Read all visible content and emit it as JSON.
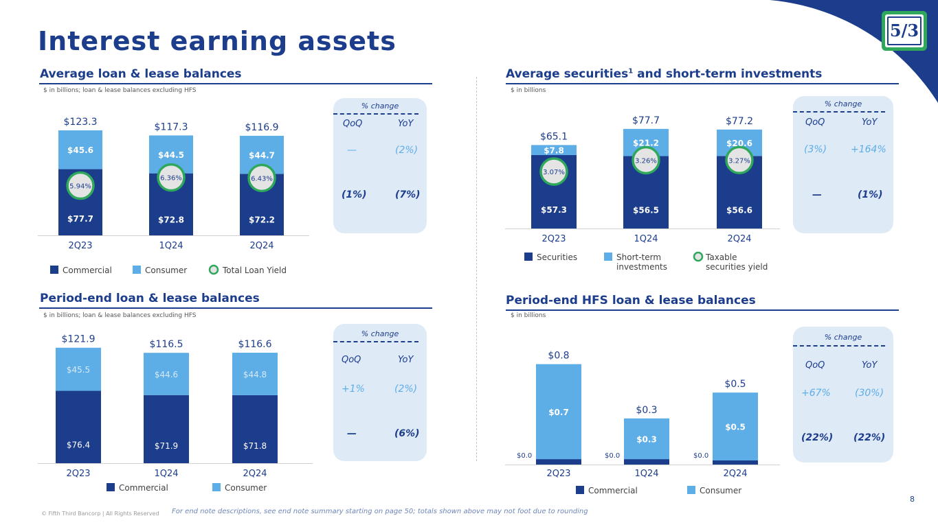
{
  "page": {
    "title": "Interest earning assets",
    "page_number": "8"
  },
  "footer": {
    "note": "For end note descriptions, see end note summary starting on page 50; totals shown above may not foot due to rounding",
    "copyright": "© Fifth Third Bancorp | All Rights Reserved"
  },
  "logo": {
    "text": "5/3"
  },
  "colors": {
    "navy": "#1c3c8c",
    "light_blue": "#5dade7",
    "panel": "#dfeaf7",
    "green": "#2fa85b",
    "bubble": "#e4e4e4"
  },
  "panels": {
    "avg_loans": {
      "title": "Average loan & lease balances",
      "subtitle": "$ in billions; loan & lease balances excluding HFS",
      "change": {
        "label": "% change",
        "qoq": "QoQ",
        "yoy": "YoY",
        "rows": [
          {
            "qoq": "—",
            "yoy": "(2%)"
          },
          {
            "qoq": "(1%)",
            "yoy": "(7%)"
          }
        ]
      }
    },
    "avg_securities": {
      "title": "Average securities",
      "title_sup": "1",
      "title_tail": " and short-term investments",
      "subtitle": "$ in billions",
      "change": {
        "label": "% change",
        "qoq": "QoQ",
        "yoy": "YoY",
        "rows": [
          {
            "qoq": "(3%)",
            "yoy": "+164%"
          },
          {
            "qoq": "—",
            "yoy": "(1%)"
          }
        ]
      }
    },
    "pe_loans": {
      "title": "Period-end loan & lease balances",
      "subtitle": "$ in billions; loan & lease balances excluding HFS",
      "change": {
        "label": "% change",
        "qoq": "QoQ",
        "yoy": "YoY",
        "rows": [
          {
            "qoq": "+1%",
            "yoy": "(2%)"
          },
          {
            "qoq": "—",
            "yoy": "(6%)"
          }
        ]
      }
    },
    "pe_hfs": {
      "title": "Period-end HFS loan & lease balances",
      "subtitle": "$ in billions",
      "change": {
        "label": "% change",
        "qoq": "QoQ",
        "yoy": "YoY",
        "rows": [
          {
            "qoq": "+67%",
            "yoy": "(30%)"
          },
          {
            "qoq": "(22%)",
            "yoy": "(22%)"
          }
        ]
      }
    }
  },
  "chart_data": [
    {
      "id": "avg_loans",
      "type": "bar",
      "stacked": true,
      "title": "Average loan & lease balances",
      "ylabel": "$ in billions",
      "categories": [
        "2Q23",
        "1Q24",
        "2Q24"
      ],
      "series": [
        {
          "name": "Commercial",
          "values": [
            77.7,
            72.8,
            72.2
          ],
          "labels": [
            "$77.7",
            "$72.8",
            "$72.2"
          ]
        },
        {
          "name": "Consumer",
          "values": [
            45.6,
            44.5,
            44.7
          ],
          "labels": [
            "$45.6",
            "$44.5",
            "$44.7"
          ]
        }
      ],
      "totals": [
        "$123.3",
        "$117.3",
        "$116.9"
      ],
      "yield": {
        "name": "Total Loan Yield",
        "values": [
          "5.94%",
          "6.36%",
          "6.43%"
        ]
      },
      "legend": [
        "Commercial",
        "Consumer",
        "Total Loan Yield"
      ],
      "ylim": [
        0,
        145
      ]
    },
    {
      "id": "avg_securities",
      "type": "bar",
      "stacked": true,
      "title": "Average securities and short-term investments",
      "ylabel": "$ in billions",
      "categories": [
        "2Q23",
        "1Q24",
        "2Q24"
      ],
      "series": [
        {
          "name": "Securities",
          "values": [
            57.3,
            56.5,
            56.6
          ],
          "labels": [
            "$57.3",
            "$56.5",
            "$56.6"
          ]
        },
        {
          "name": "Short-term investments",
          "values": [
            7.8,
            21.2,
            20.6
          ],
          "labels": [
            "$7.8",
            "$21.2",
            "$20.6"
          ]
        }
      ],
      "totals": [
        "$65.1",
        "$77.7",
        "$77.2"
      ],
      "yield": {
        "name": "Taxable securities yield",
        "values": [
          "3.07%",
          "3.26%",
          "3.27%"
        ]
      },
      "legend": [
        "Securities",
        "Short-term investments",
        "Taxable securities yield"
      ],
      "ylim": [
        0,
        91
      ]
    },
    {
      "id": "pe_loans",
      "type": "bar",
      "stacked": true,
      "title": "Period-end loan & lease balances",
      "ylabel": "$ in billions",
      "categories": [
        "2Q23",
        "1Q24",
        "2Q24"
      ],
      "series": [
        {
          "name": "Commercial",
          "values": [
            76.4,
            71.9,
            71.8
          ],
          "labels": [
            "$76.4",
            "$71.9",
            "$71.8"
          ]
        },
        {
          "name": "Consumer",
          "values": [
            45.5,
            44.6,
            44.8
          ],
          "labels": [
            "$45.5",
            "$44.6",
            "$44.8"
          ]
        }
      ],
      "totals": [
        "$121.9",
        "$116.5",
        "$116.6"
      ],
      "legend": [
        "Commercial",
        "Consumer"
      ],
      "ylim": [
        0,
        142
      ]
    },
    {
      "id": "pe_hfs",
      "type": "bar",
      "stacked": true,
      "title": "Period-end HFS loan & lease balances",
      "ylabel": "$ in billions",
      "categories": [
        "2Q23",
        "1Q24",
        "2Q24"
      ],
      "series": [
        {
          "name": "Commercial",
          "values": [
            0.04,
            0.04,
            0.03
          ],
          "labels": [
            "$0.0",
            "$0.0",
            "$0.0"
          ]
        },
        {
          "name": "Consumer",
          "values": [
            0.7,
            0.3,
            0.5
          ],
          "labels": [
            "$0.7",
            "$0.3",
            "$0.5"
          ]
        }
      ],
      "totals": [
        "$0.8",
        "$0.3",
        "$0.5"
      ],
      "legend": [
        "Commercial",
        "Consumer"
      ],
      "ylim": [
        0,
        0.89
      ]
    }
  ]
}
